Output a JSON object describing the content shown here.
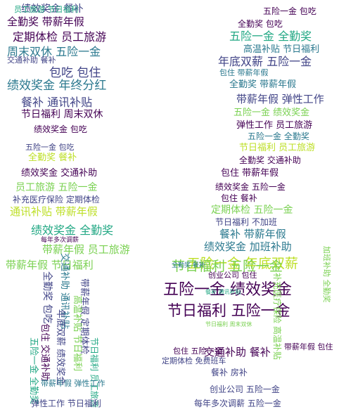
{
  "palette": {
    "dark_purple": "#440154",
    "indigo": "#414487",
    "blue": "#2a788e",
    "teal": "#22a884",
    "green": "#7ad151",
    "yellow_green": "#bddf26",
    "background": "#ffffff"
  },
  "words": [
    "绩效奖金",
    "餐补",
    "全勤奖",
    "带薪年假",
    "定期体检",
    "员工旅游",
    "周末双休",
    "五险一金",
    "节日福利",
    "包吃",
    "包住",
    "年终分红",
    "通讯补贴",
    "弹性工作",
    "加班补助",
    "补充医疗保险",
    "交通补助",
    "高温补贴",
    "年底双薪",
    "不加班",
    "每年多次调薪",
    "创业公司",
    "免费班车",
    "房补",
    "包吃 包住",
    "年底双薪 五险一金",
    "绩效奖金 年终分红",
    "带薪年假 节日福利",
    "五险一金 全勤奖",
    "员工旅游 节日福利",
    "五险一金 绩效奖金",
    "节日福利 五险一金",
    "交通补助 餐补",
    "每年多次调薪 五险一金",
    "弹性工作 节日福利",
    "绩效奖金 餐补",
    "全勤奖 带薪年假",
    "定期体检 员工旅游",
    "周末双休 五险一金",
    "包吃 包住",
    "餐补 通讯补贴",
    "节日福利 周末双休",
    "绩效奖金 包吃",
    "五险一金 包吃",
    "全勤奖 餐补",
    "绩效奖金 交通补助",
    "员工旅游 五险一金",
    "补充医疗保险 定期体检",
    "通讯补贴 带薪年假",
    "绩效奖金 全勤奖",
    "带薪年假 员工旅游",
    "带薪年假 节日福利",
    "全勤奖 包吃",
    "交通补助 通讯补贴",
    "带薪年假 定期体检",
    "高温补贴 节日福利",
    "年底双薪 绩效奖金",
    "包住 交通补助",
    "带薪年假 弹性工作",
    "弹性工作 员工旅游",
    "五险一金 全勤奖",
    "节日福利 员工旅游",
    "全勤奖 交通补助",
    "包住 带薪年假",
    "绩效奖金 五险一金",
    "包住 餐补",
    "定期体检 五险一金",
    "节日福利 不加班",
    "餐补 带薪年假",
    "绩效奖金 加班补助",
    "五险一金 年底双薪",
    "创业公司 包住",
    "加班补助 全勤奖",
    "补充医疗保险 高温补贴",
    "包住 五险一金",
    "定期体检 免费班车",
    "餐补 房补",
    "创业公司 五险一金",
    "带薪年假 包住"
  ]
}
